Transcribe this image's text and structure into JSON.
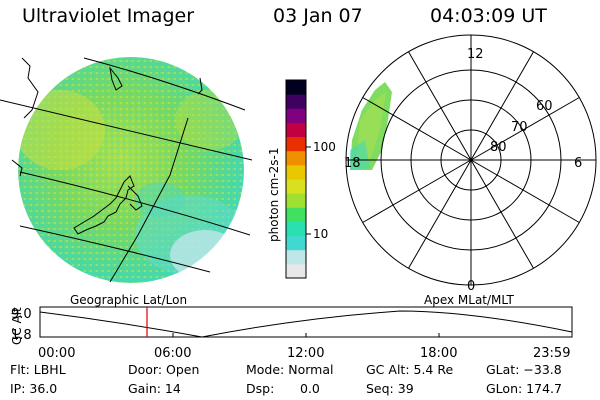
{
  "header": {
    "instrument": "Ultraviolet Imager",
    "date": "03 Jan 07",
    "time": "04:03:09 UT"
  },
  "colorbar": {
    "unit_label": "photon cm-2s-1",
    "ticks": [
      "100",
      "10"
    ],
    "colors": [
      "#e8e8e8",
      "#bfe6e8",
      "#40d8d0",
      "#28e0b0",
      "#40e060",
      "#a0e030",
      "#d8e020",
      "#e8c800",
      "#f09000",
      "#e83000",
      "#c00040",
      "#800080",
      "#400060",
      "#000020"
    ]
  },
  "polar_plot": {
    "mlt_labels": [
      "12",
      "18",
      "6",
      "0"
    ],
    "lat_labels": [
      "60",
      "70",
      "80"
    ]
  },
  "projection_labels": {
    "left": "Geographic Lat/Lon",
    "right": "Apex MLat/MLT"
  },
  "altitude_plot": {
    "ylabel": "GC Alt",
    "yticks": [
      "9.0",
      "1.8"
    ],
    "xticks": [
      "00:00",
      "06:00",
      "12:00",
      "18:00",
      "23:59"
    ],
    "marker_color": "#e00000"
  },
  "info": {
    "flt": "Flt: LBHL",
    "ip": "IP: 36.0",
    "door": "Door: Open",
    "gain": "Gain: 14",
    "mode": "Mode: Normal",
    "dsp": "Dsp:",
    "dsp_value": "0.0",
    "gcalt": "GC Alt: 5.4 Re",
    "seq": "Seq: 39",
    "glat": "GLat: −33.8",
    "glon": "GLon: 174.7"
  }
}
